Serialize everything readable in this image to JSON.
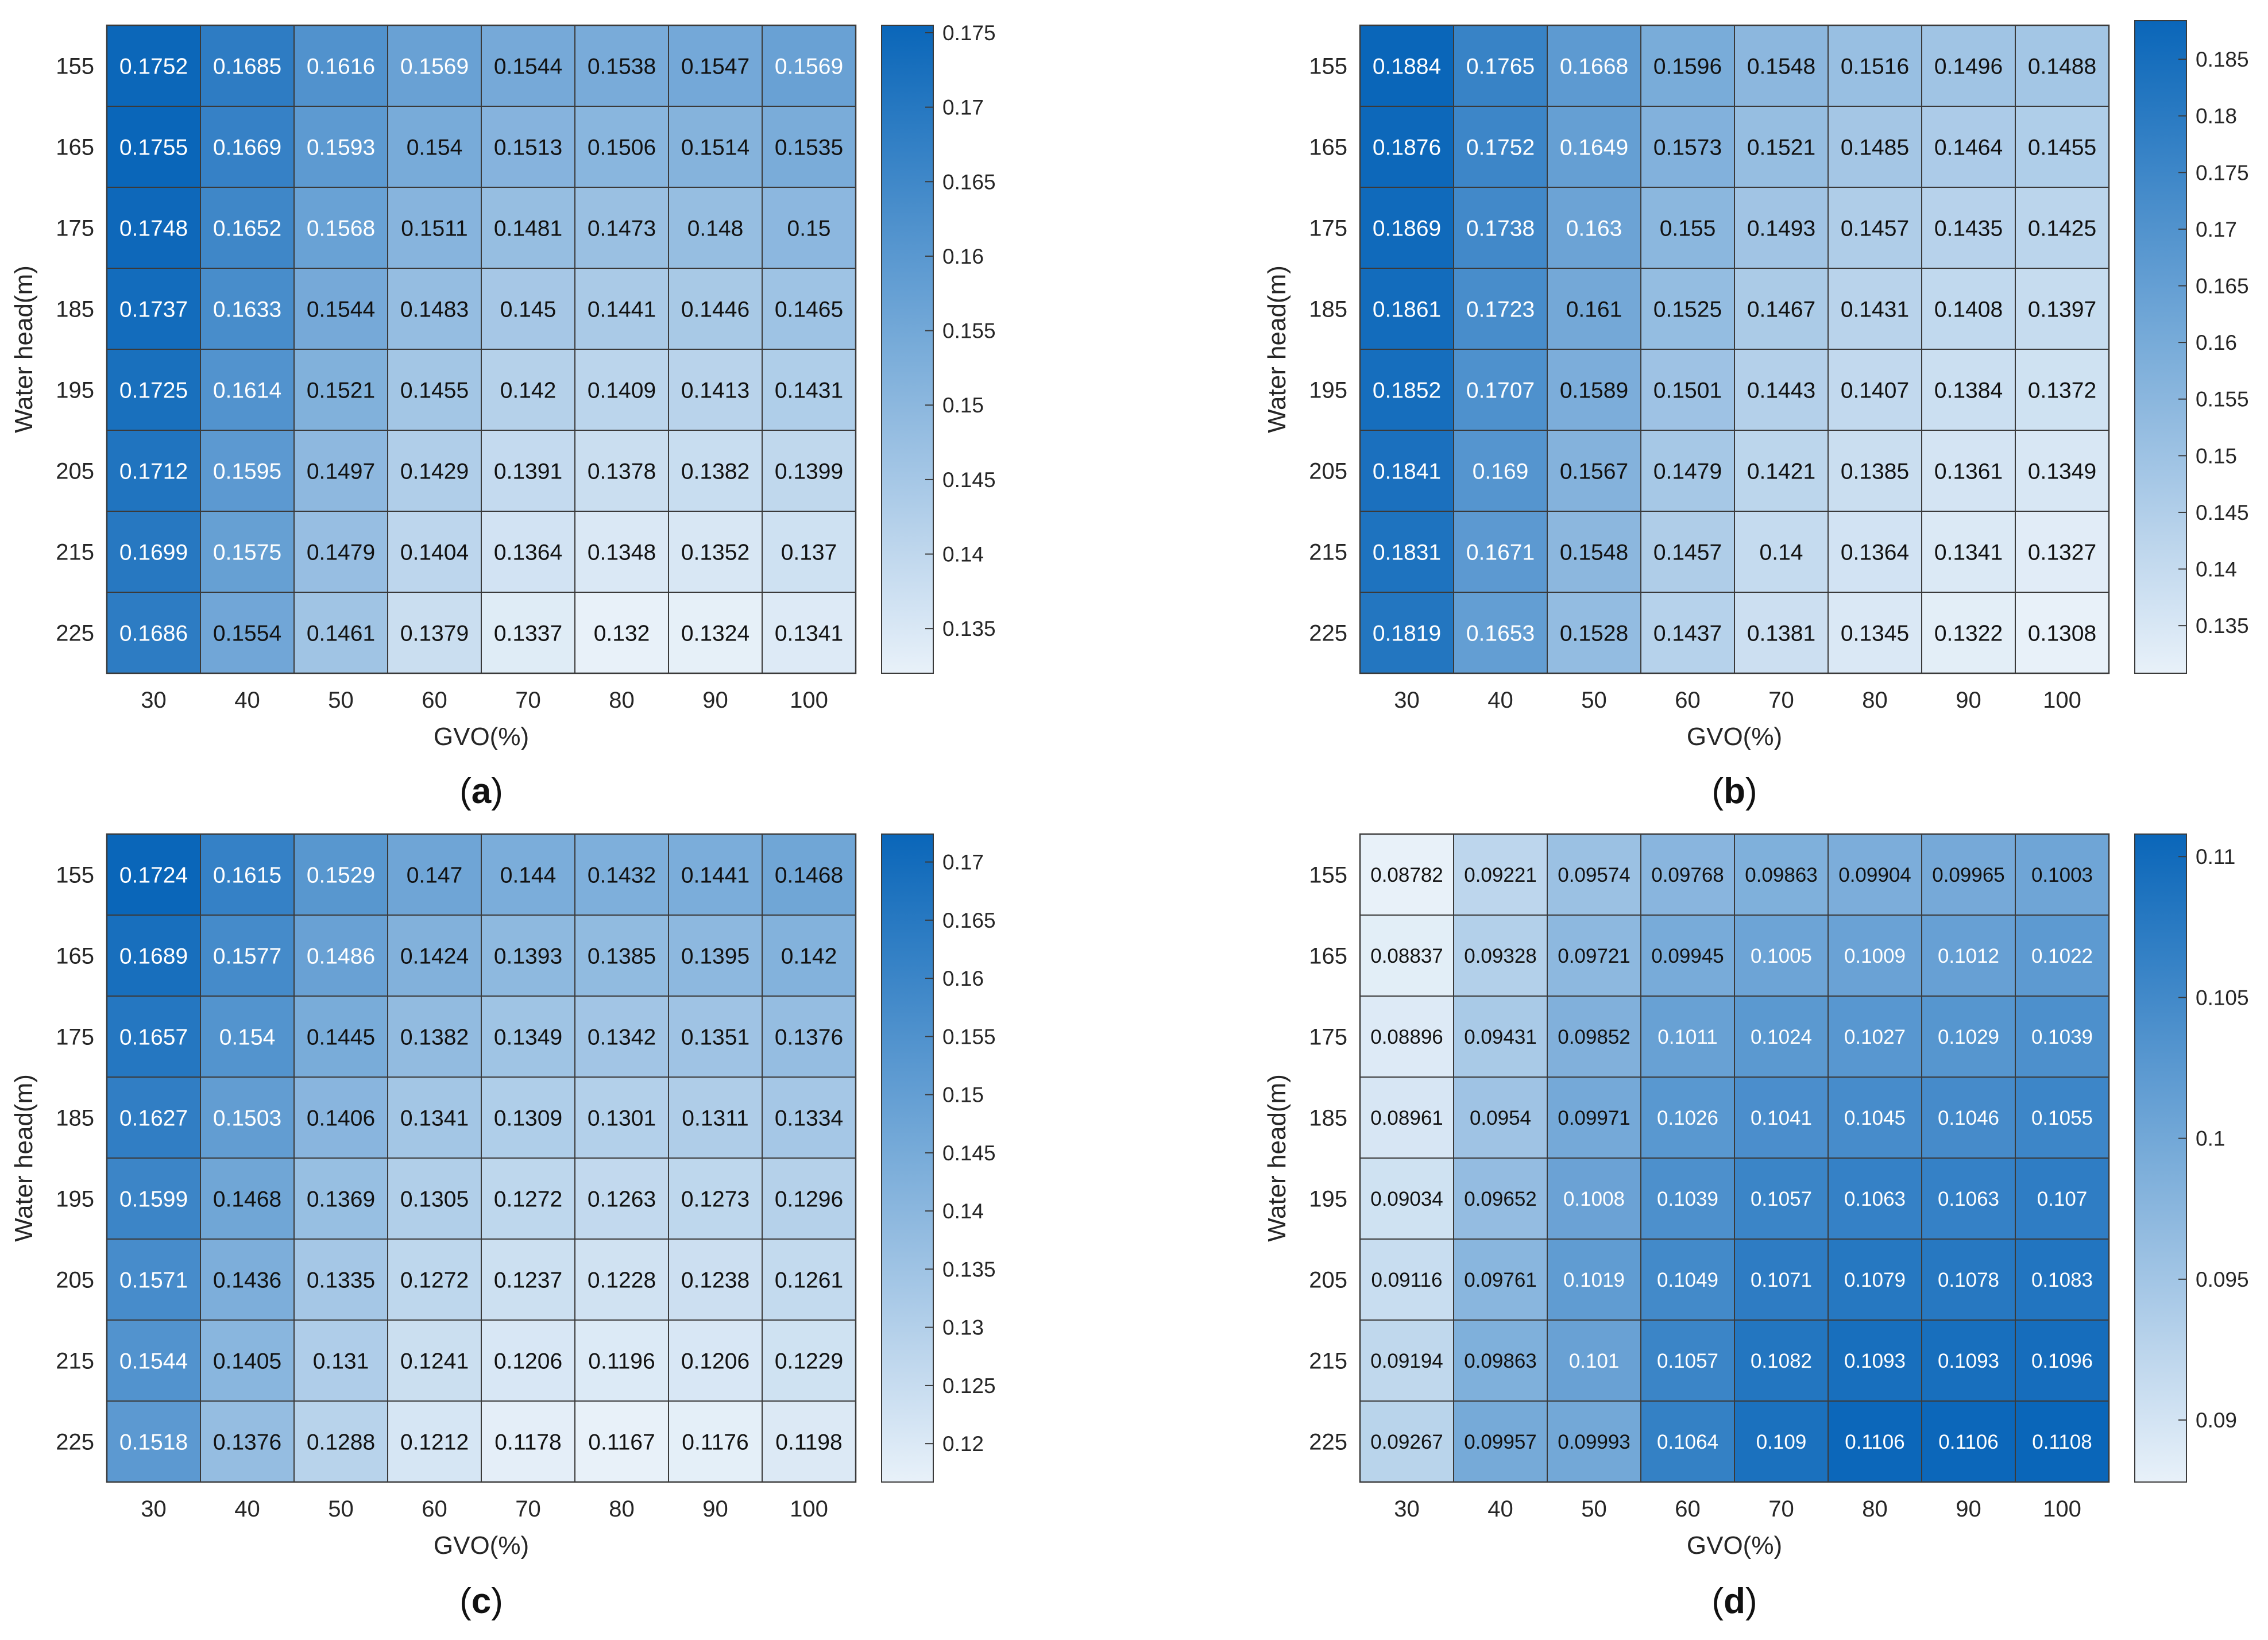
{
  "figure_caption_parens": [
    "(",
    ")"
  ],
  "chart_data": [
    {
      "type": "heatmap",
      "panel_label": "a",
      "xlabel": "GVO(%)",
      "ylabel": "Water head(m)",
      "x_categories": [
        "30",
        "40",
        "50",
        "60",
        "70",
        "80",
        "90",
        "100"
      ],
      "y_categories": [
        "155",
        "165",
        "175",
        "185",
        "195",
        "205",
        "215",
        "225"
      ],
      "values": [
        [
          "0.1752",
          "0.1685",
          "0.1616",
          "0.1569",
          "0.1544",
          "0.1538",
          "0.1547",
          "0.1569"
        ],
        [
          "0.1755",
          "0.1669",
          "0.1593",
          "0.154",
          "0.1513",
          "0.1506",
          "0.1514",
          "0.1535"
        ],
        [
          "0.1748",
          "0.1652",
          "0.1568",
          "0.1511",
          "0.1481",
          "0.1473",
          "0.148",
          "0.15"
        ],
        [
          "0.1737",
          "0.1633",
          "0.1544",
          "0.1483",
          "0.145",
          "0.1441",
          "0.1446",
          "0.1465"
        ],
        [
          "0.1725",
          "0.1614",
          "0.1521",
          "0.1455",
          "0.142",
          "0.1409",
          "0.1413",
          "0.1431"
        ],
        [
          "0.1712",
          "0.1595",
          "0.1497",
          "0.1429",
          "0.1391",
          "0.1378",
          "0.1382",
          "0.1399"
        ],
        [
          "0.1699",
          "0.1575",
          "0.1479",
          "0.1404",
          "0.1364",
          "0.1348",
          "0.1352",
          "0.137"
        ],
        [
          "0.1686",
          "0.1554",
          "0.1461",
          "0.1379",
          "0.1337",
          "0.132",
          "0.1324",
          "0.1341"
        ]
      ],
      "color_range": [
        0.132,
        0.1755
      ],
      "colorbar_ticks": [
        "0.135",
        "0.14",
        "0.145",
        "0.15",
        "0.155",
        "0.16",
        "0.165",
        "0.17",
        "0.175"
      ]
    },
    {
      "type": "heatmap",
      "panel_label": "b",
      "xlabel": "GVO(%)",
      "ylabel": "Water head(m)",
      "x_categories": [
        "30",
        "40",
        "50",
        "60",
        "70",
        "80",
        "90",
        "100"
      ],
      "y_categories": [
        "155",
        "165",
        "175",
        "185",
        "195",
        "205",
        "215",
        "225"
      ],
      "values": [
        [
          "0.1884",
          "0.1765",
          "0.1668",
          "0.1596",
          "0.1548",
          "0.1516",
          "0.1496",
          "0.1488"
        ],
        [
          "0.1876",
          "0.1752",
          "0.1649",
          "0.1573",
          "0.1521",
          "0.1485",
          "0.1464",
          "0.1455"
        ],
        [
          "0.1869",
          "0.1738",
          "0.163",
          "0.155",
          "0.1493",
          "0.1457",
          "0.1435",
          "0.1425"
        ],
        [
          "0.1861",
          "0.1723",
          "0.161",
          "0.1525",
          "0.1467",
          "0.1431",
          "0.1408",
          "0.1397"
        ],
        [
          "0.1852",
          "0.1707",
          "0.1589",
          "0.1501",
          "0.1443",
          "0.1407",
          "0.1384",
          "0.1372"
        ],
        [
          "0.1841",
          "0.169",
          "0.1567",
          "0.1479",
          "0.1421",
          "0.1385",
          "0.1361",
          "0.1349"
        ],
        [
          "0.1831",
          "0.1671",
          "0.1548",
          "0.1457",
          "0.14",
          "0.1364",
          "0.1341",
          "0.1327"
        ],
        [
          "0.1819",
          "0.1653",
          "0.1528",
          "0.1437",
          "0.1381",
          "0.1345",
          "0.1322",
          "0.1308"
        ]
      ],
      "color_range": [
        0.1308,
        0.1884
      ],
      "colorbar_ticks": [
        "0.135",
        "0.14",
        "0.145",
        "0.15",
        "0.155",
        "0.16",
        "0.165",
        "0.17",
        "0.175",
        "0.18",
        "0.185"
      ]
    },
    {
      "type": "heatmap",
      "panel_label": "c",
      "xlabel": "GVO(%)",
      "ylabel": "Water head(m)",
      "x_categories": [
        "30",
        "40",
        "50",
        "60",
        "70",
        "80",
        "90",
        "100"
      ],
      "y_categories": [
        "155",
        "165",
        "175",
        "185",
        "195",
        "205",
        "215",
        "225"
      ],
      "values": [
        [
          "0.1724",
          "0.1615",
          "0.1529",
          "0.147",
          "0.144",
          "0.1432",
          "0.1441",
          "0.1468"
        ],
        [
          "0.1689",
          "0.1577",
          "0.1486",
          "0.1424",
          "0.1393",
          "0.1385",
          "0.1395",
          "0.142"
        ],
        [
          "0.1657",
          "0.154",
          "0.1445",
          "0.1382",
          "0.1349",
          "0.1342",
          "0.1351",
          "0.1376"
        ],
        [
          "0.1627",
          "0.1503",
          "0.1406",
          "0.1341",
          "0.1309",
          "0.1301",
          "0.1311",
          "0.1334"
        ],
        [
          "0.1599",
          "0.1468",
          "0.1369",
          "0.1305",
          "0.1272",
          "0.1263",
          "0.1273",
          "0.1296"
        ],
        [
          "0.1571",
          "0.1436",
          "0.1335",
          "0.1272",
          "0.1237",
          "0.1228",
          "0.1238",
          "0.1261"
        ],
        [
          "0.1544",
          "0.1405",
          "0.131",
          "0.1241",
          "0.1206",
          "0.1196",
          "0.1206",
          "0.1229"
        ],
        [
          "0.1518",
          "0.1376",
          "0.1288",
          "0.1212",
          "0.1178",
          "0.1167",
          "0.1176",
          "0.1198"
        ]
      ],
      "color_range": [
        0.1167,
        0.1724
      ],
      "colorbar_ticks": [
        "0.12",
        "0.125",
        "0.13",
        "0.135",
        "0.14",
        "0.145",
        "0.15",
        "0.155",
        "0.16",
        "0.165",
        "0.17"
      ]
    },
    {
      "type": "heatmap",
      "panel_label": "d",
      "xlabel": "GVO(%)",
      "ylabel": "Water head(m)",
      "x_categories": [
        "30",
        "40",
        "50",
        "60",
        "70",
        "80",
        "90",
        "100"
      ],
      "y_categories": [
        "155",
        "165",
        "175",
        "185",
        "195",
        "205",
        "215",
        "225"
      ],
      "values": [
        [
          "0.08782",
          "0.09221",
          "0.09574",
          "0.09768",
          "0.09863",
          "0.09904",
          "0.09965",
          "0.1003"
        ],
        [
          "0.08837",
          "0.09328",
          "0.09721",
          "0.09945",
          "0.1005",
          "0.1009",
          "0.1012",
          "0.1022"
        ],
        [
          "0.08896",
          "0.09431",
          "0.09852",
          "0.1011",
          "0.1024",
          "0.1027",
          "0.1029",
          "0.1039"
        ],
        [
          "0.08961",
          "0.0954",
          "0.09971",
          "0.1026",
          "0.1041",
          "0.1045",
          "0.1046",
          "0.1055"
        ],
        [
          "0.09034",
          "0.09652",
          "0.1008",
          "0.1039",
          "0.1057",
          "0.1063",
          "0.1063",
          "0.107"
        ],
        [
          "0.09116",
          "0.09761",
          "0.1019",
          "0.1049",
          "0.1071",
          "0.1079",
          "0.1078",
          "0.1083"
        ],
        [
          "0.09194",
          "0.09863",
          "0.101",
          "0.1057",
          "0.1082",
          "0.1093",
          "0.1093",
          "0.1096"
        ],
        [
          "0.09267",
          "0.09957",
          "0.09993",
          "0.1064",
          "0.109",
          "0.1106",
          "0.1106",
          "0.1108"
        ]
      ],
      "color_range": [
        0.0878,
        0.1108
      ],
      "colorbar_ticks": [
        "0.09",
        "0.095",
        "0.1",
        "0.105",
        "0.11"
      ]
    }
  ]
}
